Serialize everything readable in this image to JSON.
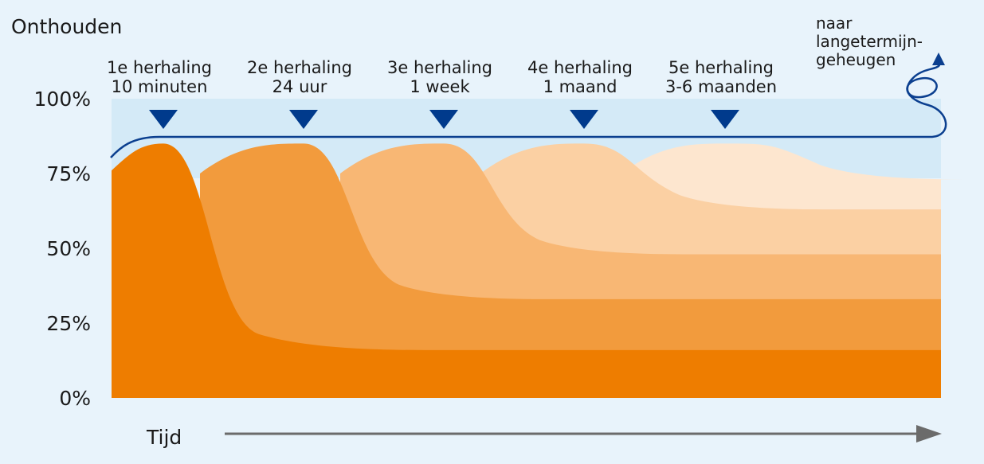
{
  "chart_data": {
    "type": "area",
    "ylabel": "Onthouden",
    "xlabel": "Tijd",
    "y_ticks": [
      "0%",
      "25%",
      "50%",
      "75%",
      "100%"
    ],
    "ylim": [
      0,
      100
    ],
    "series": [
      {
        "name": "",
        "peak": 85,
        "plateau": 16,
        "color": "#ee7d00"
      },
      {
        "name": "",
        "peak": 85,
        "plateau": 33,
        "color": "#f29b3d"
      },
      {
        "name": "",
        "peak": 85,
        "plateau": 48,
        "color": "#f8b774"
      },
      {
        "name": "",
        "peak": 85,
        "plateau": 63,
        "color": "#fbd0a3"
      },
      {
        "name": "",
        "peak": 85,
        "plateau": 73,
        "color": "#fde6cf"
      }
    ],
    "repetitions": [
      {
        "label": "1e herhaling",
        "interval": "10 minuten"
      },
      {
        "label": "2e herhaling",
        "interval": "24 uur"
      },
      {
        "label": "3e herhaling",
        "interval": "1 week"
      },
      {
        "label": "4e herhaling",
        "interval": "1 maand"
      },
      {
        "label": "5e herhaling",
        "interval": "3-6 maanden"
      }
    ],
    "retention_line_level": 88,
    "annotation": [
      "naar",
      "langetermijn-",
      "geheugen"
    ]
  },
  "colors": {
    "background": "#e8f3fb",
    "band": "#d4eaf7",
    "marker": "#003a8c",
    "arrow": "#6b6b6b"
  }
}
